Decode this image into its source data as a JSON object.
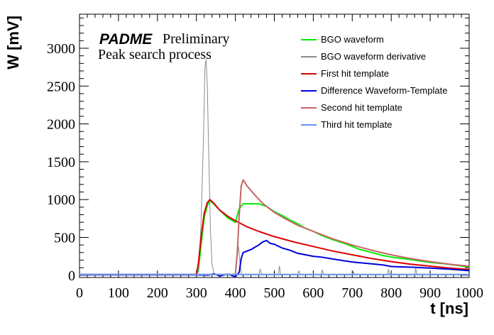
{
  "chart_data": {
    "type": "line",
    "title": "",
    "annotation_brand": "PADME",
    "annotation_status": "Preliminary",
    "annotation_subtitle": "Peak search process",
    "xlabel": "t [ns]",
    "ylabel": "W [mV]",
    "xlim": [
      0,
      1000
    ],
    "ylim": [
      -30,
      3450
    ],
    "x_ticks": [
      0,
      100,
      200,
      300,
      400,
      500,
      600,
      700,
      800,
      900,
      1000
    ],
    "y_ticks": [
      0,
      500,
      1000,
      1500,
      2000,
      2500,
      3000
    ],
    "grid": false,
    "legend_position": "top-right",
    "series": [
      {
        "name": "BGO waveform",
        "color": "#00ee00",
        "points": [
          [
            0,
            10
          ],
          [
            300,
            10
          ],
          [
            305,
            60
          ],
          [
            312,
            400
          ],
          [
            320,
            760
          ],
          [
            328,
            920
          ],
          [
            335,
            985
          ],
          [
            345,
            940
          ],
          [
            360,
            860
          ],
          [
            380,
            760
          ],
          [
            400,
            700
          ],
          [
            410,
            880
          ],
          [
            420,
            945
          ],
          [
            440,
            945
          ],
          [
            460,
            945
          ],
          [
            480,
            910
          ],
          [
            500,
            840
          ],
          [
            520,
            790
          ],
          [
            540,
            730
          ],
          [
            560,
            680
          ],
          [
            580,
            620
          ],
          [
            600,
            580
          ],
          [
            620,
            530
          ],
          [
            650,
            470
          ],
          [
            680,
            420
          ],
          [
            700,
            380
          ],
          [
            720,
            340
          ],
          [
            750,
            300
          ],
          [
            780,
            260
          ],
          [
            800,
            240
          ],
          [
            830,
            220
          ],
          [
            860,
            200
          ],
          [
            900,
            170
          ],
          [
            940,
            150
          ],
          [
            970,
            130
          ],
          [
            1000,
            110
          ]
        ]
      },
      {
        "name": "BGO waveform derivative",
        "color": "#8c8c8c",
        "points": [
          [
            0,
            5
          ],
          [
            300,
            5
          ],
          [
            306,
            80
          ],
          [
            312,
            700
          ],
          [
            318,
            1800
          ],
          [
            322,
            2750
          ],
          [
            325,
            2850
          ],
          [
            328,
            2500
          ],
          [
            332,
            1500
          ],
          [
            336,
            600
          ],
          [
            340,
            150
          ],
          [
            346,
            5
          ],
          [
            400,
            5
          ],
          [
            404,
            200
          ],
          [
            408,
            380
          ],
          [
            412,
            150
          ],
          [
            416,
            5
          ],
          [
            460,
            5
          ],
          [
            464,
            80
          ],
          [
            468,
            5
          ],
          [
            510,
            5
          ],
          [
            513,
            120
          ],
          [
            516,
            5
          ],
          [
            560,
            5
          ],
          [
            563,
            60
          ],
          [
            566,
            5
          ],
          [
            620,
            5
          ],
          [
            623,
            70
          ],
          [
            626,
            5
          ],
          [
            700,
            5
          ],
          [
            703,
            50
          ],
          [
            706,
            5
          ],
          [
            790,
            5
          ],
          [
            793,
            80
          ],
          [
            796,
            5
          ],
          [
            860,
            5
          ],
          [
            863,
            90
          ],
          [
            866,
            5
          ],
          [
            1000,
            5
          ]
        ]
      },
      {
        "name": "First hit template",
        "color": "#dd0000",
        "points": [
          [
            0,
            10
          ],
          [
            300,
            10
          ],
          [
            305,
            150
          ],
          [
            312,
            500
          ],
          [
            320,
            820
          ],
          [
            328,
            960
          ],
          [
            335,
            1000
          ],
          [
            345,
            950
          ],
          [
            360,
            860
          ],
          [
            380,
            780
          ],
          [
            400,
            720
          ],
          [
            430,
            640
          ],
          [
            460,
            580
          ],
          [
            500,
            510
          ],
          [
            550,
            440
          ],
          [
            600,
            380
          ],
          [
            650,
            320
          ],
          [
            700,
            270
          ],
          [
            750,
            220
          ],
          [
            800,
            180
          ],
          [
            850,
            145
          ],
          [
            900,
            120
          ],
          [
            950,
            95
          ],
          [
            1000,
            75
          ]
        ]
      },
      {
        "name": "Difference Waveform-Template",
        "color": "#0000dd",
        "points": [
          [
            0,
            5
          ],
          [
            300,
            5
          ],
          [
            330,
            0
          ],
          [
            345,
            20
          ],
          [
            360,
            -10
          ],
          [
            380,
            15
          ],
          [
            400,
            -20
          ],
          [
            410,
            40
          ],
          [
            415,
            220
          ],
          [
            420,
            300
          ],
          [
            440,
            340
          ],
          [
            460,
            400
          ],
          [
            470,
            440
          ],
          [
            480,
            460
          ],
          [
            490,
            420
          ],
          [
            500,
            410
          ],
          [
            520,
            360
          ],
          [
            540,
            330
          ],
          [
            560,
            290
          ],
          [
            580,
            270
          ],
          [
            600,
            250
          ],
          [
            620,
            240
          ],
          [
            650,
            215
          ],
          [
            680,
            190
          ],
          [
            700,
            175
          ],
          [
            720,
            165
          ],
          [
            750,
            150
          ],
          [
            780,
            135
          ],
          [
            800,
            115
          ],
          [
            830,
            110
          ],
          [
            860,
            105
          ],
          [
            900,
            95
          ],
          [
            950,
            80
          ],
          [
            1000,
            60
          ]
        ]
      },
      {
        "name": "Second hit template",
        "color": "#c86464",
        "points": [
          [
            0,
            10
          ],
          [
            400,
            10
          ],
          [
            405,
            300
          ],
          [
            410,
            800
          ],
          [
            415,
            1180
          ],
          [
            420,
            1260
          ],
          [
            430,
            1180
          ],
          [
            450,
            1060
          ],
          [
            470,
            950
          ],
          [
            500,
            830
          ],
          [
            530,
            740
          ],
          [
            560,
            660
          ],
          [
            600,
            580
          ],
          [
            650,
            480
          ],
          [
            700,
            400
          ],
          [
            750,
            330
          ],
          [
            800,
            270
          ],
          [
            850,
            220
          ],
          [
            900,
            180
          ],
          [
            950,
            145
          ],
          [
            1000,
            120
          ]
        ]
      },
      {
        "name": "Third hit template",
        "color": "#6495ed",
        "points": [
          [
            0,
            10
          ],
          [
            1000,
            10
          ]
        ]
      }
    ]
  }
}
